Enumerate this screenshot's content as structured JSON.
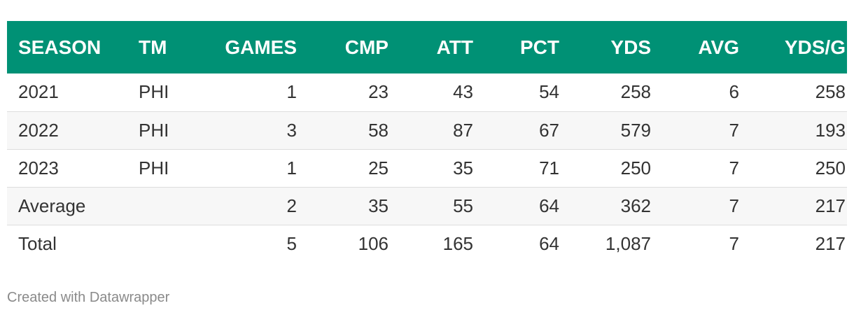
{
  "chart_data": {
    "type": "table",
    "columns": [
      "SEASON",
      "TM",
      "GAMES",
      "CMP",
      "ATT",
      "PCT",
      "YDS",
      "AVG",
      "YDS/G"
    ],
    "rows": [
      [
        "2021",
        "PHI",
        "1",
        "23",
        "43",
        "54",
        "258",
        "6",
        "258"
      ],
      [
        "2022",
        "PHI",
        "3",
        "58",
        "87",
        "67",
        "579",
        "7",
        "193"
      ],
      [
        "2023",
        "PHI",
        "1",
        "25",
        "35",
        "71",
        "250",
        "7",
        "250"
      ],
      [
        "Average",
        "",
        "2",
        "35",
        "55",
        "64",
        "362",
        "7",
        "217"
      ],
      [
        "Total",
        "",
        "5",
        "106",
        "165",
        "64",
        "1,087",
        "7",
        "217"
      ]
    ]
  },
  "footer": {
    "credit": "Created with Datawrapper"
  },
  "colors": {
    "header_bg": "#009175",
    "header_text": "#ffffff",
    "stripe": "#f7f7f7",
    "credit_text": "#8a8a8a"
  }
}
